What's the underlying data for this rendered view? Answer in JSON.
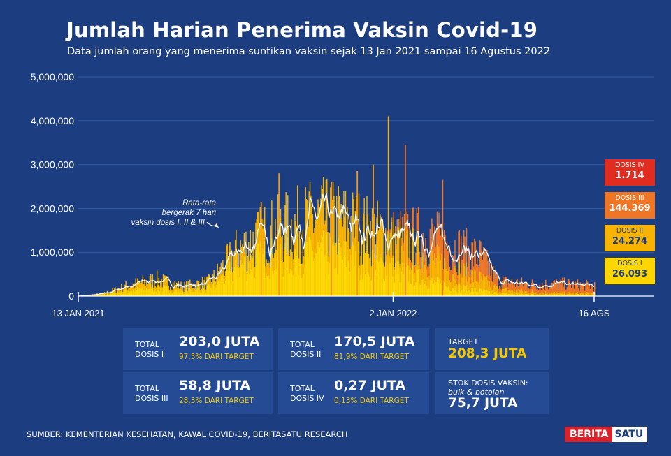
{
  "title": "Jumlah Harian Penerima Vaksin Covid-19",
  "subtitle": "Data jumlah orang yang menerima suntikan vaksin sejak 13 Jan 2021 sampai 16 Agustus 2022",
  "chart_data": {
    "type": "bar",
    "stacked": true,
    "ylim": [
      0,
      5000000
    ],
    "yticks": [
      "5,000,000",
      "4,000,000",
      "3,000,000",
      "2,000,000",
      "1,000,000",
      "0"
    ],
    "yticks_values": [
      5000000,
      4000000,
      3000000,
      2000000,
      1000000,
      0
    ],
    "xticks": [
      "13 JAN 2021",
      "2 JAN 2022",
      "16 AGS"
    ],
    "xticks_dates": [
      "2021-01-13",
      "2022-01-02",
      "2022-08-16"
    ],
    "x_range": [
      "2021-01-13",
      "2022-08-16"
    ],
    "series": [
      {
        "name": "DOSIS I",
        "color": "#ffd600"
      },
      {
        "name": "DOSIS II",
        "color": "#f7b300"
      },
      {
        "name": "DOSIS III",
        "color": "#ef7626"
      },
      {
        "name": "DOSIS IV",
        "color": "#e02d20"
      }
    ],
    "moving_average_color": "#ffffff",
    "annotation": {
      "line1": "Rata-rata",
      "line2": "bergerak 7 hari",
      "line3": "vaksin dosis I, II & III"
    },
    "profile": [
      {
        "date": "2021-01-13",
        "d1": 0,
        "d2": 0,
        "d3": 0,
        "d4": 0
      },
      {
        "date": "2021-02-10",
        "d1": 30000,
        "d2": 25000,
        "d3": 0,
        "d4": 0
      },
      {
        "date": "2021-03-10",
        "d1": 130000,
        "d2": 110000,
        "d3": 0,
        "d4": 0
      },
      {
        "date": "2021-04-10",
        "d1": 200000,
        "d2": 170000,
        "d3": 0,
        "d4": 0
      },
      {
        "date": "2021-05-10",
        "d1": 110000,
        "d2": 100000,
        "d3": 0,
        "d4": 0
      },
      {
        "date": "2021-06-10",
        "d1": 180000,
        "d2": 140000,
        "d3": 0,
        "d4": 0
      },
      {
        "date": "2021-07-10",
        "d1": 650000,
        "d2": 350000,
        "d3": 0,
        "d4": 0
      },
      {
        "date": "2021-08-10",
        "d1": 850000,
        "d2": 520000,
        "d3": 0,
        "d4": 0
      },
      {
        "date": "2021-09-10",
        "d1": 900000,
        "d2": 650000,
        "d3": 0,
        "d4": 0
      },
      {
        "date": "2021-10-10",
        "d1": 960000,
        "d2": 770000,
        "d3": 0,
        "d4": 0
      },
      {
        "date": "2021-11-10",
        "d1": 860000,
        "d2": 780000,
        "d3": 0,
        "d4": 0
      },
      {
        "date": "2021-12-10",
        "d1": 760000,
        "d2": 680000,
        "d3": 0,
        "d4": 0
      },
      {
        "date": "2022-01-02",
        "d1": 620000,
        "d2": 580000,
        "d3": 80000,
        "d4": 0
      },
      {
        "date": "2022-02-10",
        "d1": 320000,
        "d2": 520000,
        "d3": 480000,
        "d4": 0
      },
      {
        "date": "2022-03-10",
        "d1": 210000,
        "d2": 380000,
        "d3": 500000,
        "d4": 0
      },
      {
        "date": "2022-04-10",
        "d1": 120000,
        "d2": 260000,
        "d3": 480000,
        "d4": 0
      },
      {
        "date": "2022-04-30",
        "d1": 60000,
        "d2": 90000,
        "d3": 170000,
        "d4": 0
      },
      {
        "date": "2022-06-10",
        "d1": 40000,
        "d2": 45000,
        "d3": 170000,
        "d4": 0
      },
      {
        "date": "2022-07-10",
        "d1": 35000,
        "d2": 35000,
        "d3": 200000,
        "d4": 2000
      },
      {
        "date": "2022-08-16",
        "d1": 30000,
        "d2": 30000,
        "d3": 160000,
        "d4": 3000
      }
    ],
    "peaks": [
      {
        "date": "2021-08-26",
        "value": 2800000
      },
      {
        "date": "2021-08-06",
        "value": 2150000
      },
      {
        "date": "2021-12-27",
        "value": 4100000
      },
      {
        "date": "2022-01-15",
        "value": 3450000
      },
      {
        "date": "2022-02-26",
        "value": 2650000
      },
      {
        "date": "2021-10-24",
        "value": 2600000
      },
      {
        "date": "2021-11-22",
        "value": 2850000
      },
      {
        "date": "2021-12-10",
        "value": 3000000
      }
    ]
  },
  "dose_labels": [
    {
      "name": "DOSIS IV",
      "value": "1.714",
      "color": "#e02d20",
      "text_color": "#ffffff"
    },
    {
      "name": "DOSIS III",
      "value": "144.369",
      "color": "#ef7626",
      "text_color": "#ffffff"
    },
    {
      "name": "DOSIS II",
      "value": "24.274",
      "color": "#f7b300",
      "text_color": "#1c3d80"
    },
    {
      "name": "DOSIS I",
      "value": "26.093",
      "color": "#ffd600",
      "text_color": "#1c3d80"
    }
  ],
  "stats": {
    "d1": {
      "label1": "TOTAL",
      "label2": "DOSIS I",
      "value": "203,0 JUTA",
      "pct": "97,5% DARI TARGET"
    },
    "d2": {
      "label1": "TOTAL",
      "label2": "DOSIS II",
      "value": "170,5 JUTA",
      "pct": "81,9% DARI TARGET"
    },
    "target": {
      "label": "TARGET",
      "value": "208,3 JUTA"
    },
    "d3": {
      "label1": "TOTAL",
      "label2": "DOSIS III",
      "value": "58,8 JUTA",
      "pct": "28,3% DARI TARGET"
    },
    "d4": {
      "label1": "TOTAL",
      "label2": "DOSIS IV",
      "value": "0,27 JUTA",
      "pct": "0,13% DARI TARGET"
    },
    "stock": {
      "label1": "STOK DOSIS VAKSIN:",
      "label2": "bulk & botolan",
      "value": "75,7 JUTA"
    }
  },
  "source": "SUMBER: KEMENTERIAN KESEHATAN, KAWAL COVID-19, BERITASATU RESEARCH",
  "logo": {
    "part1": "BERITA",
    "part2": "SATU"
  }
}
